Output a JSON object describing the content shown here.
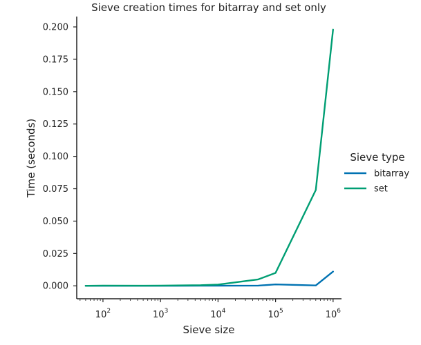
{
  "chart_data": {
    "type": "line",
    "title": "Sieve creation times for bitarray and set only",
    "xlabel": "Sieve size",
    "ylabel": "Time (seconds)",
    "xscale": "log",
    "xlim": [
      35,
      1400000
    ],
    "ylim": [
      -0.01,
      0.208
    ],
    "x_ticks": [
      {
        "value": 100,
        "base": "10",
        "exp": "2"
      },
      {
        "value": 1000,
        "base": "10",
        "exp": "3"
      },
      {
        "value": 10000,
        "base": "10",
        "exp": "4"
      },
      {
        "value": 100000,
        "base": "10",
        "exp": "5"
      },
      {
        "value": 1000000,
        "base": "10",
        "exp": "6"
      }
    ],
    "y_ticks": [
      {
        "value": 0.0,
        "label": "0.000"
      },
      {
        "value": 0.025,
        "label": "0.025"
      },
      {
        "value": 0.05,
        "label": "0.050"
      },
      {
        "value": 0.075,
        "label": "0.075"
      },
      {
        "value": 0.1,
        "label": "0.100"
      },
      {
        "value": 0.125,
        "label": "0.125"
      },
      {
        "value": 0.15,
        "label": "0.150"
      },
      {
        "value": 0.175,
        "label": "0.175"
      },
      {
        "value": 0.2,
        "label": "0.200"
      }
    ],
    "legend": {
      "title": "Sieve type",
      "placement": "right"
    },
    "grid": false,
    "series": [
      {
        "name": "bitarray",
        "color": "#0072b2",
        "x": [
          50,
          100,
          500,
          1000,
          5000,
          10000,
          50000,
          100000,
          500000,
          1000000
        ],
        "y": [
          0.0,
          0.0,
          0.0,
          0.0,
          0.0001,
          0.0001,
          0.0002,
          0.0011,
          0.0003,
          0.011
        ]
      },
      {
        "name": "set",
        "color": "#009e73",
        "x": [
          50,
          100,
          500,
          1000,
          5000,
          10000,
          50000,
          100000,
          500000,
          1000000
        ],
        "y": [
          0.0,
          0.0002,
          0.0001,
          0.0002,
          0.0005,
          0.001,
          0.005,
          0.01,
          0.074,
          0.198
        ]
      }
    ]
  }
}
